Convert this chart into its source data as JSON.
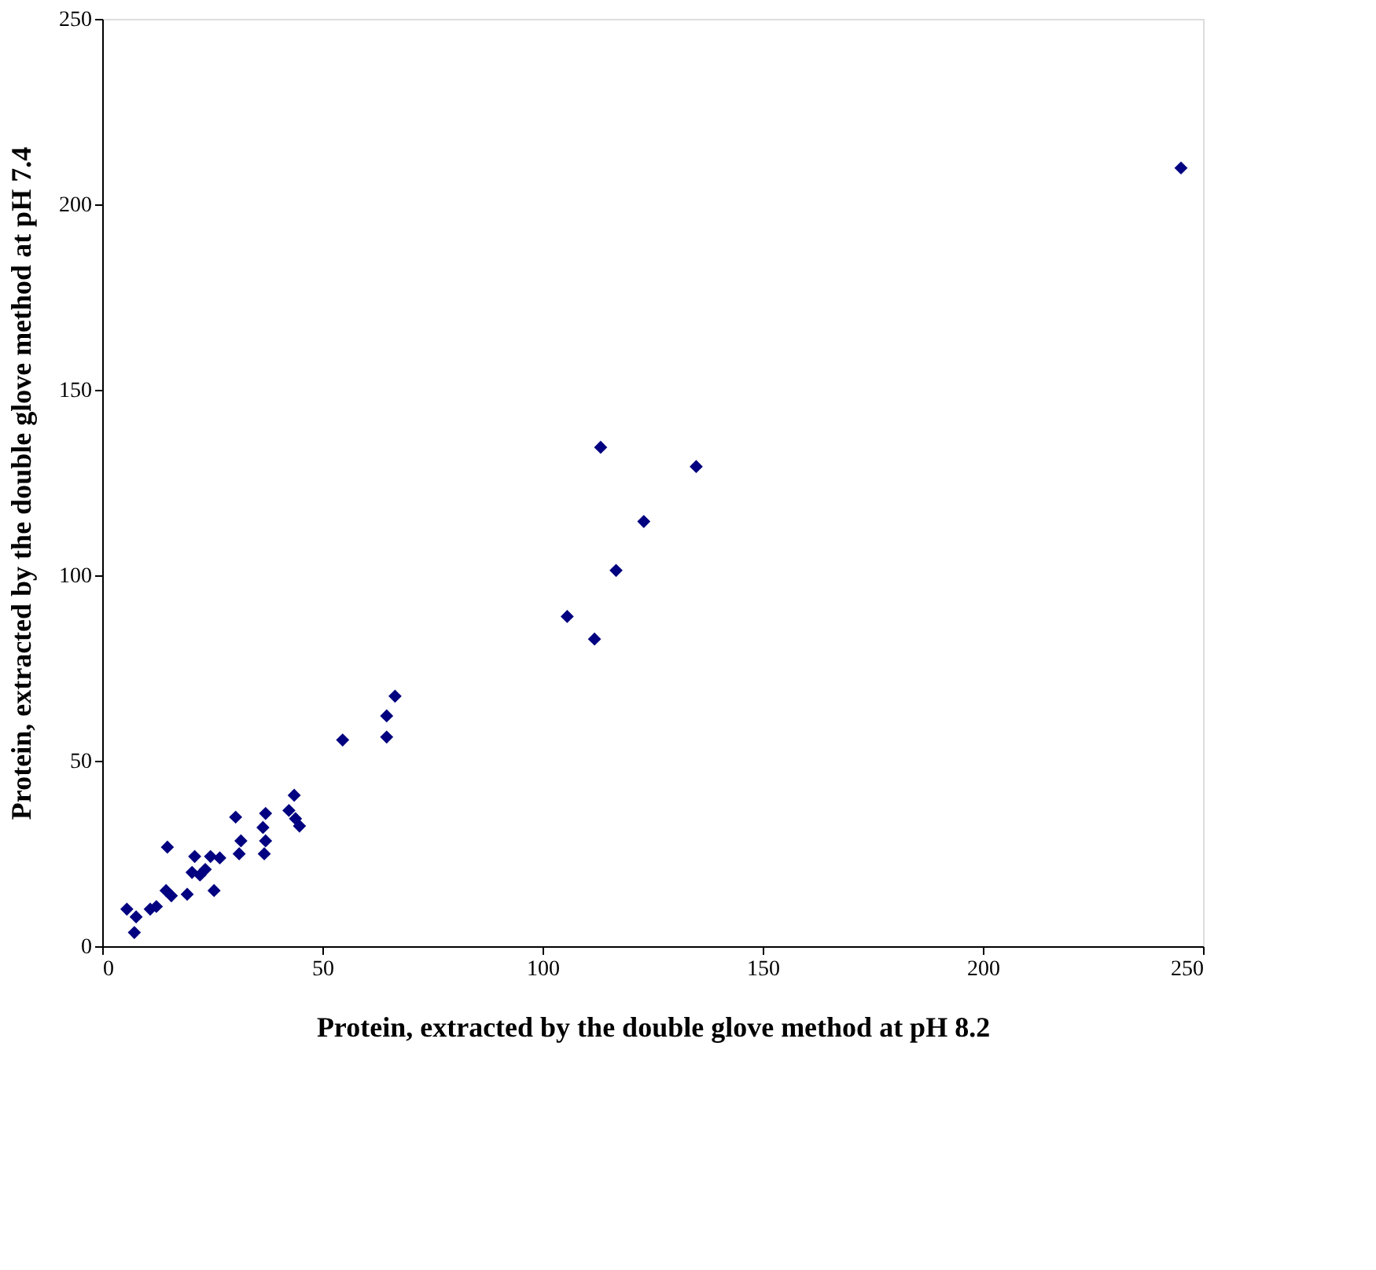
{
  "chart_data": {
    "type": "scatter",
    "xlabel": "Protein, extracted by the double glove method at pH 8.2",
    "ylabel": "Protein, extracted by the double glove method at pH 7.4",
    "marker": "diamond",
    "grid": false,
    "legend": false,
    "xlim": [
      0,
      250
    ],
    "ylim": [
      0,
      250
    ],
    "xticks": [
      0,
      50,
      100,
      150,
      200,
      250
    ],
    "yticks": [
      0,
      50,
      100,
      150,
      200,
      250
    ],
    "series": [
      {
        "color": "#000080",
        "x": [
          5.6,
          7.7,
          7.3,
          10.9,
          12.3,
          14.5,
          15.7,
          14.8,
          19.3,
          21,
          20.4,
          22.2,
          23.4,
          24.6,
          26.7,
          25.4,
          30.3,
          31.5,
          31.1,
          37.1,
          36.5,
          37.1,
          36.8,
          43.6,
          42.4,
          43.9,
          44.8,
          54.6,
          64.6,
          64.6,
          66.5,
          105.6,
          111.8,
          113.2,
          116.7,
          123,
          134.9,
          245
        ],
        "values": [
          10,
          7.9,
          3.7,
          10,
          10.7,
          15,
          13.6,
          26.7,
          14,
          24.2,
          19.9,
          19.2,
          20.7,
          24.2,
          23.8,
          15,
          34.8,
          28.4,
          24.9,
          35.8,
          32,
          28.4,
          24.9,
          40.7,
          36.6,
          34.4,
          32.4,
          55.6,
          62.1,
          56.4,
          67.4,
          88.9,
          82.8,
          134.5,
          101.3,
          114.5,
          129.3,
          209.8
        ]
      }
    ]
  }
}
